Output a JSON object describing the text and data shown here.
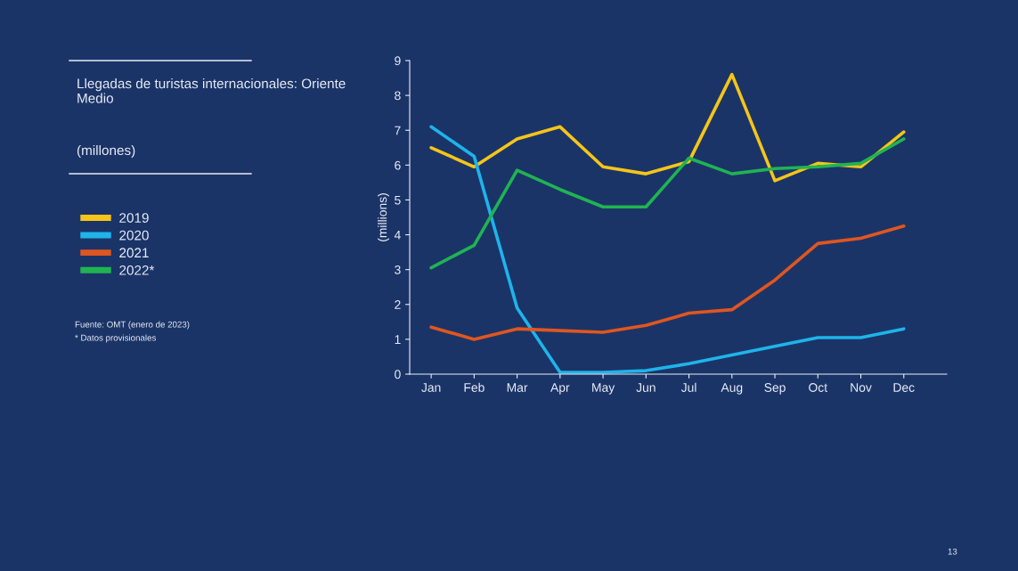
{
  "chart_data": {
    "type": "line",
    "title": "Llegadas de turistas internacionales: Oriente Medio",
    "subtitle": "(millones)",
    "ylabel": "(millions)",
    "categories": [
      "Jan",
      "Feb",
      "Mar",
      "Apr",
      "May",
      "Jun",
      "Jul",
      "Aug",
      "Sep",
      "Oct",
      "Nov",
      "Dec"
    ],
    "series": [
      {
        "name": "2019",
        "color": "#f5c518",
        "values": [
          6.5,
          5.95,
          6.75,
          7.1,
          5.95,
          5.75,
          6.1,
          8.6,
          5.55,
          6.05,
          5.95,
          6.95
        ]
      },
      {
        "name": "2020",
        "color": "#1eb4ea",
        "values": [
          7.1,
          6.25,
          1.9,
          0.05,
          0.05,
          0.1,
          0.3,
          0.55,
          0.8,
          1.05,
          1.05,
          1.3
        ]
      },
      {
        "name": "2021",
        "color": "#e0561f",
        "values": [
          1.35,
          1.0,
          1.3,
          1.25,
          1.2,
          1.4,
          1.75,
          1.85,
          2.7,
          3.75,
          3.9,
          4.25
        ]
      },
      {
        "name": "2022*",
        "color": "#1fb451",
        "values": [
          3.05,
          3.7,
          5.85,
          5.3,
          4.8,
          4.8,
          6.2,
          5.75,
          5.9,
          5.95,
          6.05,
          6.75
        ]
      }
    ],
    "ylim": [
      0,
      9
    ],
    "yticks": [
      0,
      1,
      2,
      3,
      4,
      5,
      6,
      7,
      8,
      9
    ],
    "grid": false,
    "legend": "left",
    "annotations": [
      "Fuente: OMT (enero de 2023)",
      "* Datos provisionales",
      "13"
    ]
  }
}
